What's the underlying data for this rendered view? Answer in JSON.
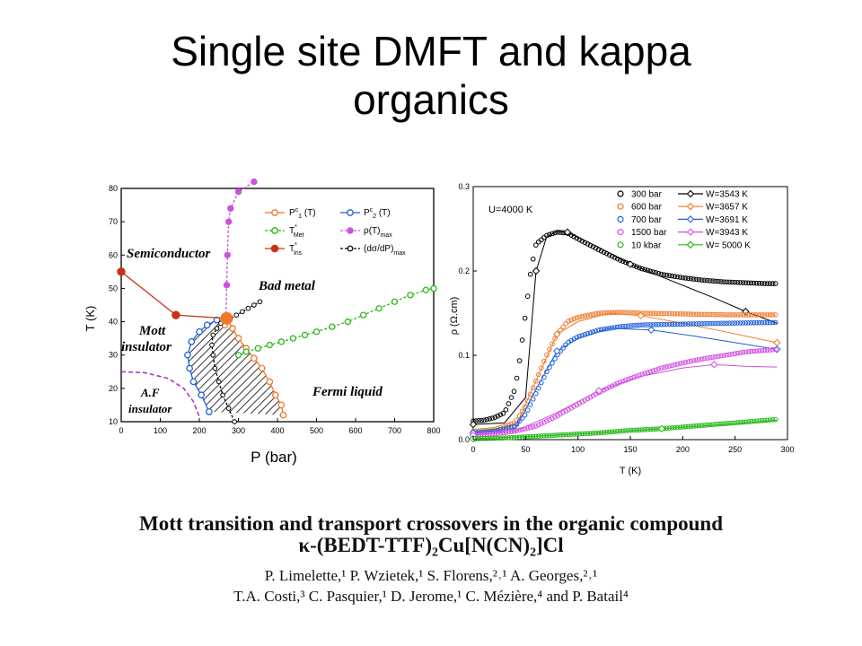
{
  "slide": {
    "title_line1": "Single site DMFT  and kappa",
    "title_line2": "organics"
  },
  "colors": {
    "orange": "#f07828",
    "blue": "#2060d8",
    "green": "#28b818",
    "purple": "#d050e0",
    "red": "#c83212",
    "black": "#000000"
  },
  "phase_diagram": {
    "xlabel": "P (bar)",
    "ylabel": "T (K)",
    "xticks": [
      0,
      100,
      200,
      300,
      400,
      500,
      600,
      700,
      800
    ],
    "yticks": [
      10,
      20,
      30,
      40,
      50,
      60,
      70,
      80
    ],
    "regions": [
      "Semiconductor",
      "Bad metal",
      "Mott",
      "insulator",
      "A.F",
      "insulator",
      "Fermi liquid"
    ],
    "legend": {
      "p1": "P",
      "p1_sup": "c",
      "p1_sub": "1",
      "p1_tail": " (T)",
      "p2": "P",
      "p2_sup": "c",
      "p2_sub": "2",
      "p2_tail": " (T)",
      "tmet": "T",
      "tmet_sup": "*",
      "tmet_sub": "Met",
      "rho": "ρ(T)",
      "rho_sub": "max",
      "tins": "T",
      "tins_sup": "*",
      "tins_sub": "Ins",
      "dsig": "(dσ/dP)",
      "dsig_sub": "max"
    }
  },
  "resistivity_plot": {
    "xlabel": "T (K)",
    "ylabel": "ρ (Ω.cm)",
    "xticks": [
      0,
      50,
      100,
      150,
      200,
      250,
      300
    ],
    "yticks": [
      "0.0",
      "0.1",
      "0.2",
      "0.3"
    ],
    "annotation": "U=4000 K",
    "legend_exp": [
      "300 bar",
      "600 bar",
      "700 bar",
      "1500 bar",
      "10 kbar"
    ],
    "legend_th": [
      "W=3543 K",
      "W=3657 K",
      "W=3691 K",
      "W=3943 K",
      "W= 5000 K"
    ]
  },
  "chart_data": [
    {
      "type": "scatter",
      "title": "",
      "xlabel": "P (bar)",
      "ylabel": "T (K)",
      "xlim": [
        0,
        800
      ],
      "ylim": [
        10,
        80
      ],
      "grid": false,
      "legend_position": "top-right",
      "series": [
        {
          "name": "P^c_1 (T)",
          "color": "#f07828",
          "x": [
            415,
            410,
            395,
            380,
            360,
            340,
            320,
            300,
            285,
            270,
            265
          ],
          "y": [
            12,
            15,
            18,
            22,
            26,
            29,
            32,
            35,
            38,
            41,
            39
          ]
        },
        {
          "name": "P^c_2 (T)",
          "color": "#2060d8",
          "x": [
            225,
            205,
            185,
            175,
            170,
            180,
            200,
            220,
            245
          ],
          "y": [
            13,
            18,
            22,
            26,
            30,
            34,
            37,
            39,
            40.5
          ]
        },
        {
          "name": "T*_Met",
          "color": "#28b818",
          "x": [
            300,
            320,
            350,
            380,
            410,
            440,
            470,
            500,
            540,
            580,
            620,
            660,
            700,
            740,
            780,
            800
          ],
          "y": [
            30,
            31,
            32,
            33,
            34,
            35,
            36,
            37,
            38.5,
            40,
            42,
            44,
            46,
            48,
            49.5,
            50
          ]
        },
        {
          "name": "ρ(T)_max",
          "color": "#d050e0",
          "x": [
            268,
            270,
            272,
            275,
            280,
            300,
            340
          ],
          "y": [
            41,
            51,
            60,
            70,
            74,
            79,
            82
          ]
        },
        {
          "name": "T*_Ins",
          "color": "#c83212",
          "x": [
            0,
            140,
            270
          ],
          "y": [
            55,
            42,
            41
          ]
        },
        {
          "name": "(dσ/dP)_max",
          "color": "#000000",
          "x": [
            290,
            275,
            260,
            250,
            240,
            235,
            232,
            235,
            245,
            255,
            265,
            280,
            295,
            310,
            325,
            340,
            355
          ],
          "y": [
            10,
            14,
            18,
            22,
            26,
            30,
            33,
            36,
            38,
            39.5,
            40.5,
            41,
            42,
            43,
            44,
            45,
            46
          ]
        }
      ]
    },
    {
      "type": "line",
      "title": "",
      "xlabel": "T (K)",
      "ylabel": "ρ (Ω.cm)",
      "xlim": [
        0,
        300
      ],
      "ylim": [
        0,
        0.3
      ],
      "grid": false,
      "legend_position": "top-right",
      "series": [
        {
          "name": "300 bar",
          "kind": "experiment",
          "color": "#000000",
          "x": [
            0,
            10,
            20,
            30,
            40,
            45,
            50,
            55,
            60,
            70,
            80,
            90,
            100,
            120,
            140,
            160,
            180,
            200,
            220,
            240,
            260,
            280,
            290
          ],
          "y": [
            0.022,
            0.023,
            0.026,
            0.032,
            0.06,
            0.1,
            0.15,
            0.2,
            0.232,
            0.242,
            0.246,
            0.245,
            0.238,
            0.225,
            0.213,
            0.203,
            0.196,
            0.192,
            0.189,
            0.187,
            0.186,
            0.185,
            0.185
          ]
        },
        {
          "name": "W=3543 K",
          "kind": "theory",
          "color": "#000000",
          "x": [
            0,
            30,
            50,
            60,
            70,
            80,
            90,
            100,
            120,
            150,
            190,
            230,
            260,
            290
          ],
          "y": [
            0.018,
            0.02,
            0.05,
            0.2,
            0.24,
            0.247,
            0.246,
            0.24,
            0.228,
            0.208,
            0.188,
            0.168,
            0.152,
            0.138
          ]
        },
        {
          "name": "600 bar",
          "kind": "experiment",
          "color": "#f07828",
          "x": [
            0,
            20,
            40,
            50,
            60,
            70,
            80,
            90,
            100,
            120,
            140,
            160,
            200,
            240,
            290
          ],
          "y": [
            0.01,
            0.012,
            0.02,
            0.04,
            0.07,
            0.1,
            0.125,
            0.14,
            0.145,
            0.15,
            0.151,
            0.15,
            0.149,
            0.148,
            0.148
          ]
        },
        {
          "name": "W=3657 K",
          "kind": "theory",
          "color": "#f07828",
          "x": [
            0,
            40,
            60,
            80,
            100,
            130,
            160,
            200,
            240,
            290
          ],
          "y": [
            0.008,
            0.014,
            0.07,
            0.125,
            0.14,
            0.15,
            0.147,
            0.138,
            0.128,
            0.115
          ]
        },
        {
          "name": "700 bar",
          "kind": "experiment",
          "color": "#2060d8",
          "x": [
            0,
            20,
            40,
            50,
            60,
            70,
            80,
            90,
            100,
            120,
            140,
            160,
            200,
            240,
            290
          ],
          "y": [
            0.008,
            0.01,
            0.016,
            0.03,
            0.055,
            0.08,
            0.1,
            0.115,
            0.122,
            0.13,
            0.134,
            0.136,
            0.137,
            0.138,
            0.139
          ]
        },
        {
          "name": "W=3691 K",
          "kind": "theory",
          "color": "#2060d8",
          "x": [
            0,
            40,
            60,
            80,
            100,
            130,
            170,
            210,
            250,
            290
          ],
          "y": [
            0.008,
            0.012,
            0.06,
            0.105,
            0.12,
            0.132,
            0.13,
            0.123,
            0.115,
            0.107
          ]
        },
        {
          "name": "1500 bar",
          "kind": "experiment",
          "color": "#d050e0",
          "x": [
            0,
            20,
            40,
            60,
            80,
            100,
            120,
            140,
            160,
            180,
            200,
            220,
            240,
            260,
            290
          ],
          "y": [
            0.005,
            0.007,
            0.01,
            0.016,
            0.028,
            0.042,
            0.056,
            0.068,
            0.077,
            0.085,
            0.091,
            0.096,
            0.1,
            0.104,
            0.107
          ]
        },
        {
          "name": "W=3943 K",
          "kind": "theory",
          "color": "#d050e0",
          "x": [
            0,
            40,
            80,
            120,
            160,
            200,
            230,
            260,
            290
          ],
          "y": [
            0.005,
            0.01,
            0.032,
            0.058,
            0.075,
            0.085,
            0.089,
            0.087,
            0.086
          ]
        },
        {
          "name": "10 kbar",
          "kind": "experiment",
          "color": "#28b818",
          "x": [
            0,
            30,
            60,
            90,
            120,
            150,
            180,
            210,
            240,
            270,
            290
          ],
          "y": [
            0.001,
            0.002,
            0.004,
            0.006,
            0.008,
            0.011,
            0.013,
            0.016,
            0.019,
            0.022,
            0.024
          ]
        },
        {
          "name": "W= 5000 K",
          "kind": "theory",
          "color": "#28b818",
          "x": [
            0,
            60,
            120,
            180,
            240,
            290
          ],
          "y": [
            0.001,
            0.004,
            0.008,
            0.013,
            0.018,
            0.023
          ]
        }
      ]
    }
  ],
  "reference": {
    "title_line1": "Mott transition and transport crossovers in the organic compound",
    "title_line2": "κ-(BEDT-TTF)₂Cu[N(CN)₂]Cl",
    "authors_line1": "P. Limelette,¹ P. Wzietek,¹ S. Florens,²˒¹ A. Georges,²˒¹",
    "authors_line2": "T.A. Costi,³ C. Pasquier,¹ D. Jerome,¹ C. Mézière,⁴ and P. Batail⁴"
  }
}
